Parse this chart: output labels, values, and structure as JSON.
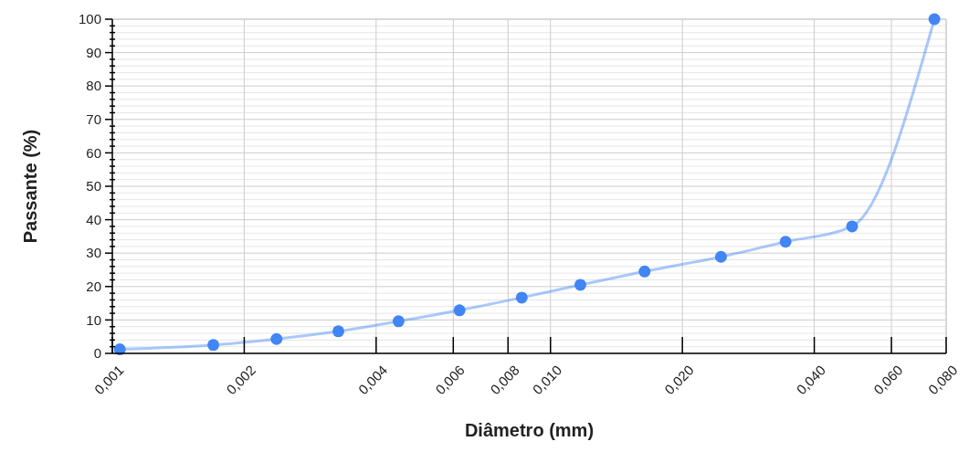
{
  "chart_data": {
    "type": "line",
    "xlabel": "Diâmetro (mm)",
    "ylabel": "Passante (%)",
    "log": "x",
    "xlim": [
      0.001,
      0.08
    ],
    "xticks": [
      {
        "value": 0.001,
        "label": "0,001"
      },
      {
        "value": 0.002,
        "label": "0,002"
      },
      {
        "value": 0.004,
        "label": "0,004"
      },
      {
        "value": 0.006,
        "label": "0,006"
      },
      {
        "value": 0.008,
        "label": "0,008"
      },
      {
        "value": 0.01,
        "label": "0,010"
      },
      {
        "value": 0.02,
        "label": "0,020"
      },
      {
        "value": 0.04,
        "label": "0,040"
      },
      {
        "value": 0.06,
        "label": "0,060"
      },
      {
        "value": 0.08,
        "label": "0,080"
      }
    ],
    "ylim": [
      0,
      100
    ],
    "yticks": [
      0,
      {
        "value": 2,
        "label": null
      },
      {
        "value": 4,
        "label": null
      },
      {
        "value": 6,
        "label": null
      },
      {
        "value": 8,
        "label": null
      },
      10,
      {
        "value": 12,
        "label": null
      },
      {
        "value": 14,
        "label": null
      },
      {
        "value": 16,
        "label": null
      },
      {
        "value": 18,
        "label": null
      },
      20,
      {
        "value": 22,
        "label": null
      },
      {
        "value": 24,
        "label": null
      },
      {
        "value": 26,
        "label": null
      },
      {
        "value": 28,
        "label": null
      },
      30,
      {
        "value": 32,
        "label": null
      },
      {
        "value": 34,
        "label": null
      },
      {
        "value": 36,
        "label": null
      },
      {
        "value": 38,
        "label": null
      },
      40,
      {
        "value": 42,
        "label": null
      },
      {
        "value": 44,
        "label": null
      },
      {
        "value": 46,
        "label": null
      },
      {
        "value": 48,
        "label": null
      },
      50,
      {
        "value": 52,
        "label": null
      },
      {
        "value": 54,
        "label": null
      },
      {
        "value": 56,
        "label": null
      },
      {
        "value": 58,
        "label": null
      },
      60,
      {
        "value": 62,
        "label": null
      },
      {
        "value": 64,
        "label": null
      },
      {
        "value": 66,
        "label": null
      },
      {
        "value": 68,
        "label": null
      },
      70,
      {
        "value": 72,
        "label": null
      },
      {
        "value": 74,
        "label": null
      },
      {
        "value": 76,
        "label": null
      },
      {
        "value": 78,
        "label": null
      },
      80,
      {
        "value": 82,
        "label": null
      },
      {
        "value": 84,
        "label": null
      },
      {
        "value": 86,
        "label": null
      },
      {
        "value": 88,
        "label": null
      },
      90,
      {
        "value": 92,
        "label": null
      },
      {
        "value": 94,
        "label": null
      },
      {
        "value": 96,
        "label": null
      },
      {
        "value": 98,
        "label": null
      },
      100
    ],
    "grid": true,
    "marker": "circle",
    "x": [
      0.00104,
      0.0017,
      0.00237,
      0.00328,
      0.0045,
      0.0062,
      0.0086,
      0.0117,
      0.0164,
      0.0245,
      0.0344,
      0.0488,
      0.0752
    ],
    "series": [
      {
        "color": "#4285f4",
        "values": [
          1.2,
          2.5,
          4.3,
          6.6,
          9.6,
          12.9,
          16.7,
          20.5,
          24.5,
          28.9,
          33.4,
          38.0,
          100
        ]
      }
    ]
  }
}
